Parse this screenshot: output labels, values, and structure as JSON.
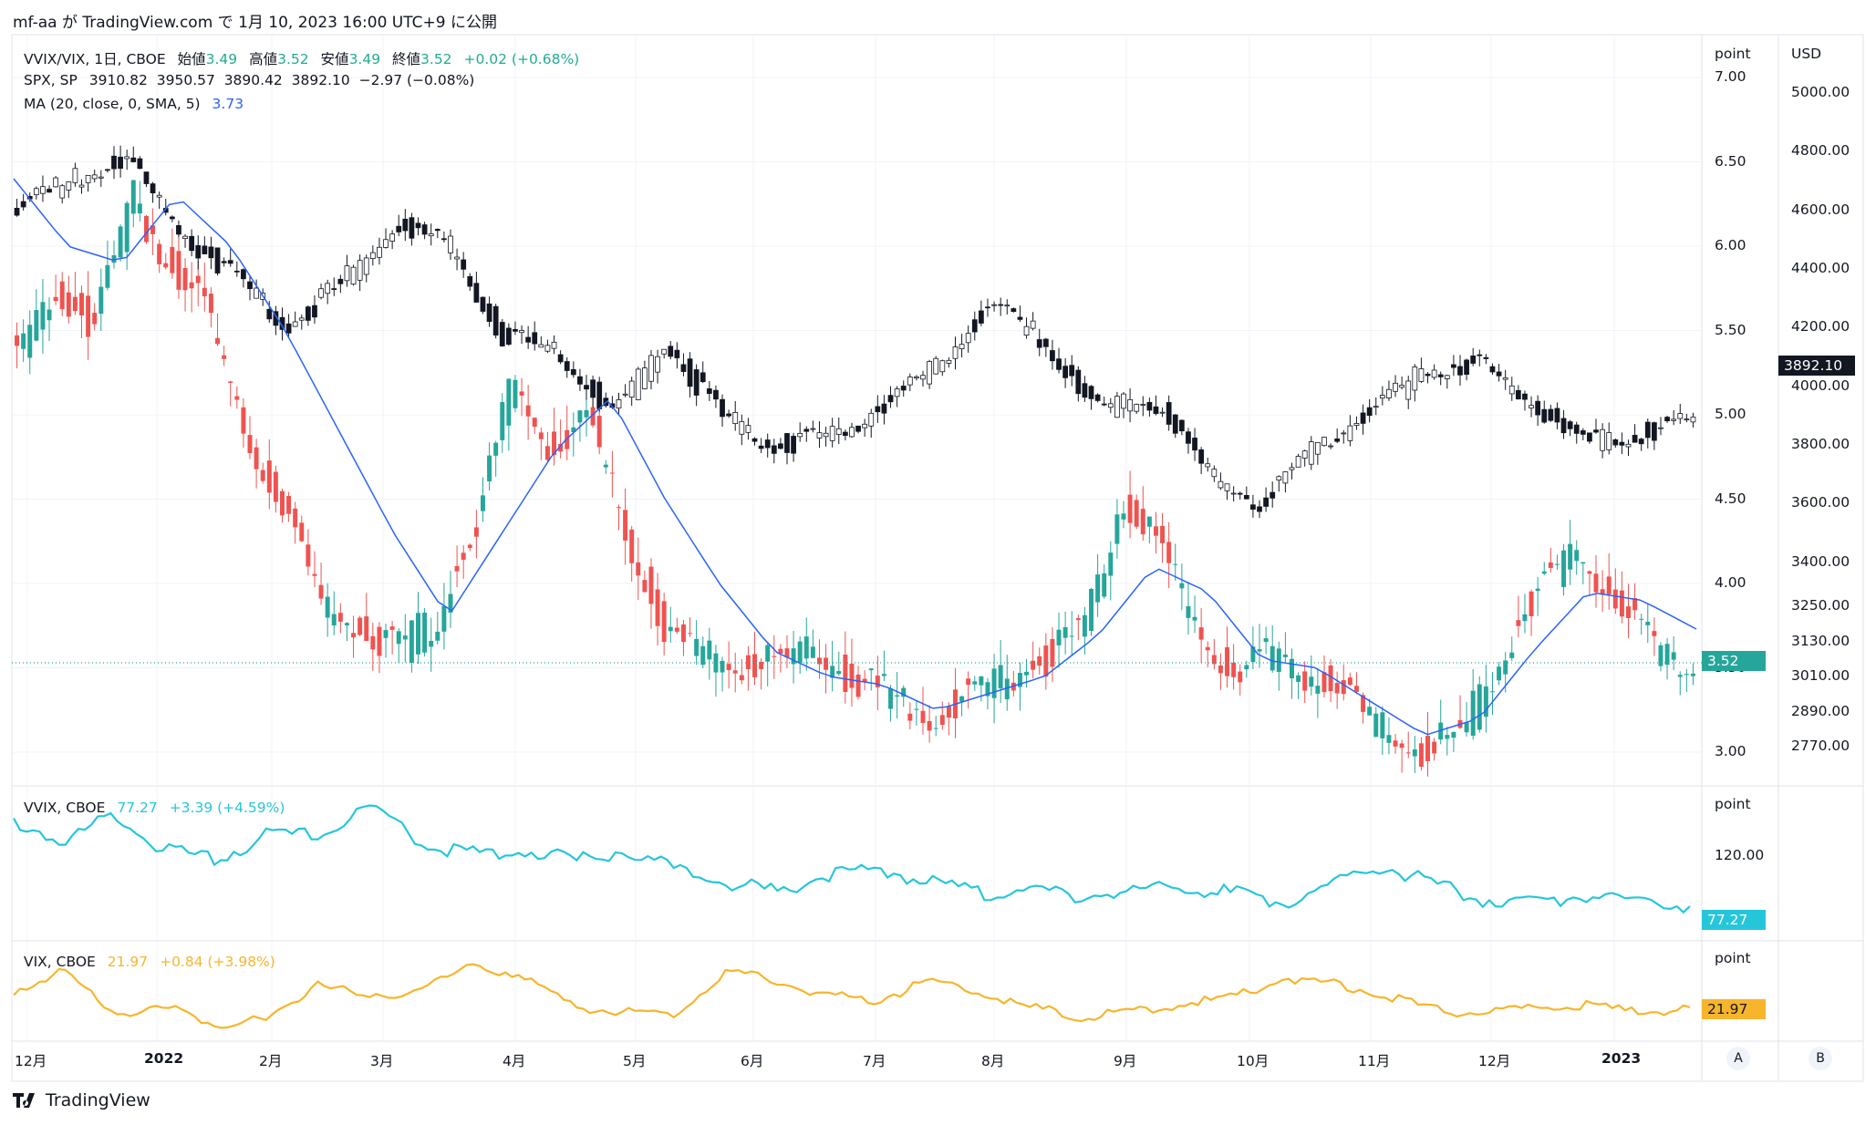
{
  "header": {
    "publish_line": "mf-aa が TradingView.com で 1月 10, 2023 16:00 UTC+9 に公開"
  },
  "main_pane": {
    "symbol_line": {
      "name": "VVIX/VIX, 1日, CBOE",
      "open_label": "始値",
      "open": "3.49",
      "high_label": "高値",
      "high": "3.52",
      "low_label": "安値",
      "low": "3.49",
      "close_label": "終値",
      "close": "3.52",
      "change": "+0.02 (+0.68%)"
    },
    "spx_line": {
      "name": "SPX, SP",
      "values": "3910.82  3950.57  3890.42  3892.10  −2.97 (−0.08%)"
    },
    "ma_line": {
      "name": "MA (20, close, 0, SMA, 5)",
      "value": "3.73"
    },
    "left_axis_unit": "point",
    "right_axis_unit": "USD",
    "left_ticks": [
      "7.00",
      "6.50",
      "6.00",
      "5.50",
      "5.00",
      "4.50",
      "4.00",
      "3.50",
      "3.00"
    ],
    "right_ticks": [
      "5000.00",
      "4800.00",
      "4600.00",
      "4400.00",
      "4200.00",
      "4000.00",
      "3800.00",
      "3600.00",
      "3400.00",
      "3250.00",
      "3130.00",
      "3010.00",
      "2890.00",
      "2770.00"
    ],
    "last_ratio_tag": "3.52",
    "last_spx_tag": "3892.10"
  },
  "vvix_pane": {
    "label": "VVIX, CBOE",
    "value": "77.27",
    "change": "+3.39 (+4.59%)",
    "axis_unit": "point",
    "tick": "120.00",
    "last_tag": "77.27"
  },
  "vix_pane": {
    "label": "VIX, CBOE",
    "value": "21.97",
    "change": "+0.84 (+3.98%)",
    "axis_unit": "point",
    "last_tag": "21.97"
  },
  "time_axis": {
    "labels": [
      "12月",
      "2022",
      "2月",
      "3月",
      "4月",
      "5月",
      "6月",
      "7月",
      "8月",
      "9月",
      "10月",
      "11月",
      "12月",
      "2023"
    ]
  },
  "corner_buttons": {
    "a": "A",
    "b": "B"
  },
  "footer": {
    "brand": "TradingView"
  },
  "colors": {
    "up": "#26a69a",
    "down": "#ef5350",
    "spx": "#131722",
    "ma": "#2962ff",
    "vvix": "#26c6da",
    "vix": "#f7b52c"
  },
  "chart_data": [
    {
      "type": "candlestick",
      "title": "VVIX/VIX, 1日, CBOE",
      "ylim": [
        2.8,
        7.1
      ],
      "x_labels": [
        "12月",
        "2022",
        "2月",
        "3月",
        "4月",
        "5月",
        "6月",
        "7月",
        "8月",
        "9月",
        "10月",
        "11月",
        "12月",
        "2023"
      ],
      "series": [
        {
          "name": "VVIX/VIX",
          "close_points": [
            5.3,
            5.8,
            5.5,
            6.3,
            5.9,
            5.6,
            4.9,
            4.4,
            3.9,
            3.7,
            3.6,
            3.8,
            4.3,
            5.2,
            4.8,
            5.0,
            4.3,
            3.7,
            3.6,
            3.5,
            3.55,
            3.6,
            3.4,
            3.35,
            3.2,
            3.35,
            3.45,
            3.55,
            3.75,
            4.5,
            4.2,
            3.7,
            3.45,
            3.6,
            3.45,
            3.3,
            3.1,
            3.0,
            3.15,
            3.6,
            4.0,
            4.2,
            3.9,
            3.6,
            3.52
          ]
        },
        {
          "name": "MA (20, close, 0, SMA, 5)",
          "points": [
            6.4,
            6.0,
            5.9,
            6.3,
            6.0,
            5.5,
            4.9,
            4.3,
            3.8,
            4.3,
            4.8,
            5.1,
            4.5,
            4.0,
            3.6,
            3.45,
            3.4,
            3.25,
            3.35,
            3.45,
            3.7,
            4.1,
            3.95,
            3.55,
            3.5,
            3.3,
            3.1,
            3.2,
            3.6,
            3.95,
            3.9,
            3.73
          ]
        },
        {
          "name": "SPX, SP",
          "close_points": [
            4600,
            4700,
            4780,
            4530,
            4380,
            4200,
            4350,
            4550,
            4480,
            4170,
            4120,
            3900,
            4150,
            3900,
            3800,
            3830,
            3930,
            4070,
            4280,
            4160,
            3920,
            3960,
            3700,
            3600,
            3800,
            3900,
            4050,
            4080,
            3950,
            3810,
            3840,
            3892.1
          ]
        }
      ]
    },
    {
      "type": "line",
      "title": "VVIX, CBOE",
      "series": [
        {
          "name": "VVIX, CBOE",
          "points": [
            140,
            125,
            145,
            118,
            112,
            130,
            128,
            150,
            125,
            115,
            120,
            110,
            118,
            105,
            95,
            88,
            100,
            105,
            95,
            87,
            90,
            85,
            88,
            92,
            87,
            80,
            95,
            108,
            92,
            82,
            80,
            86,
            82,
            77.27
          ]
        }
      ]
    },
    {
      "type": "line",
      "title": "VIX, CBOE",
      "series": [
        {
          "name": "VIX, CBOE",
          "points": [
            27,
            33,
            20,
            22,
            17,
            18,
            30,
            24,
            28,
            34,
            32,
            22,
            21,
            20,
            33,
            30,
            26,
            24,
            30,
            27,
            22,
            19,
            21,
            23,
            25,
            31,
            29,
            26,
            21,
            20,
            22,
            23,
            20,
            21.97
          ]
        }
      ]
    }
  ]
}
